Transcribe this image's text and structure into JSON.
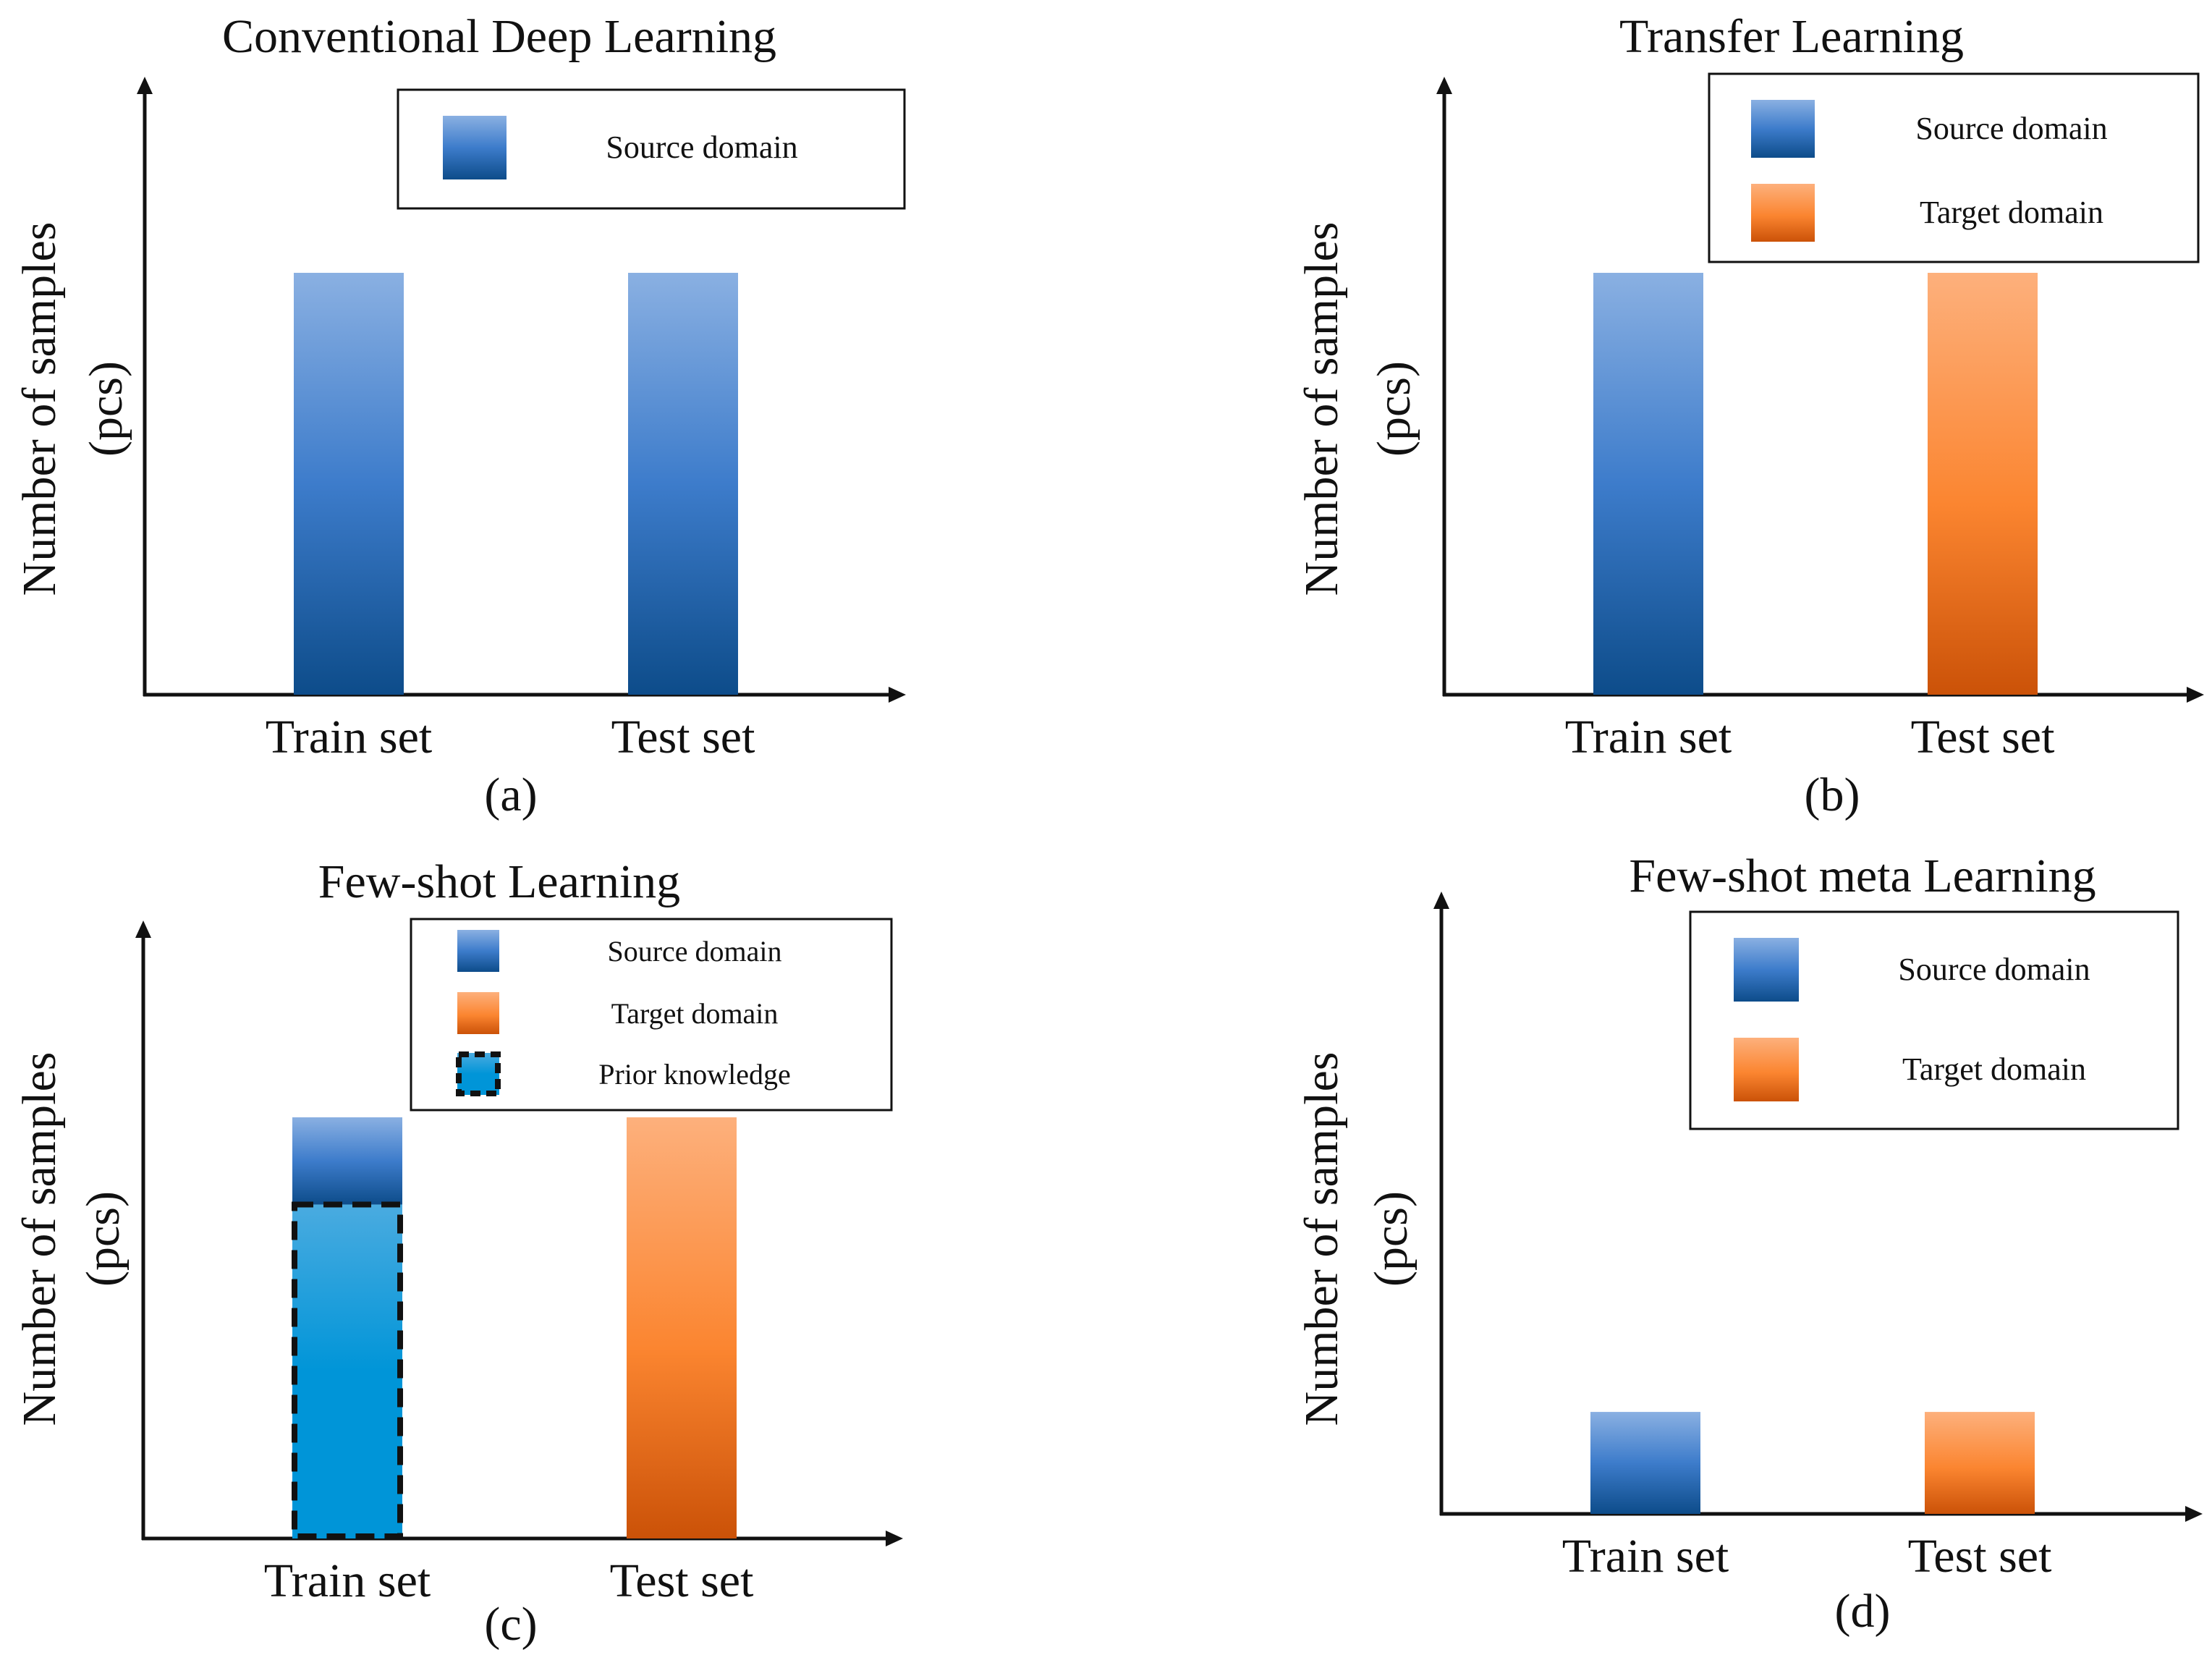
{
  "colors": {
    "source_light": "#8ab0e2",
    "source_mid": "#3d7ccb",
    "source_dark": "#0d4c8a",
    "target_light": "#fdb07c",
    "target_mid": "#fb8530",
    "target_dark": "#cb5208",
    "prior_light": "#4aabe0",
    "prior_dark": "#0095d8",
    "axis": "#111111"
  },
  "chart_data": [
    {
      "id": "a",
      "type": "bar",
      "title": "Conventional Deep Learning",
      "ylabel_line1": "Number of samples",
      "ylabel_line2": "(pcs)",
      "caption": "(a)",
      "categories": [
        "Train set",
        "Test set"
      ],
      "ylim": [
        0,
        100
      ],
      "bars": [
        {
          "category": "Train set",
          "value": 70,
          "domain": "source"
        },
        {
          "category": "Test set",
          "value": 70,
          "domain": "source"
        }
      ],
      "legend": [
        {
          "label": "Source domain",
          "domain": "source"
        }
      ]
    },
    {
      "id": "b",
      "type": "bar",
      "title": "Transfer Learning",
      "ylabel_line1": "Number of samples",
      "ylabel_line2": "(pcs)",
      "caption": "(b)",
      "categories": [
        "Train set",
        "Test set"
      ],
      "ylim": [
        0,
        100
      ],
      "bars": [
        {
          "category": "Train set",
          "value": 70,
          "domain": "source"
        },
        {
          "category": "Test set",
          "value": 70,
          "domain": "target"
        }
      ],
      "legend": [
        {
          "label": "Source domain",
          "domain": "source"
        },
        {
          "label": "Target  domain",
          "domain": "target"
        }
      ]
    },
    {
      "id": "c",
      "type": "bar",
      "title": "Few-shot Learning",
      "ylabel_line1": "Number of samples",
      "ylabel_line2": "(pcs)",
      "caption": "(c)",
      "categories": [
        "Train set",
        "Test set"
      ],
      "ylim": [
        0,
        100
      ],
      "bars": [
        {
          "category": "Train set",
          "value": 14.5,
          "base": 55.5,
          "domain": "source"
        },
        {
          "category": "Train set",
          "value": 55.5,
          "base": 0,
          "domain": "prior"
        },
        {
          "category": "Test set",
          "value": 70,
          "domain": "target"
        }
      ],
      "legend": [
        {
          "label": "Source domain",
          "domain": "source"
        },
        {
          "label": "Target domain",
          "domain": "target"
        },
        {
          "label": "Prior knowledge",
          "domain": "prior"
        }
      ]
    },
    {
      "id": "d",
      "type": "bar",
      "title": "Few-shot meta Learning",
      "ylabel_line1": "Number of samples",
      "ylabel_line2": "(pcs)",
      "caption": "(d)",
      "categories": [
        "Train set",
        "Test set"
      ],
      "ylim": [
        0,
        100
      ],
      "bars": [
        {
          "category": "Train set",
          "value": 18,
          "domain": "source"
        },
        {
          "category": "Test set",
          "value": 18,
          "domain": "target"
        }
      ],
      "legend": [
        {
          "label": "Source domain",
          "domain": "source"
        },
        {
          "label": "Target  domain",
          "domain": "target"
        }
      ]
    }
  ]
}
